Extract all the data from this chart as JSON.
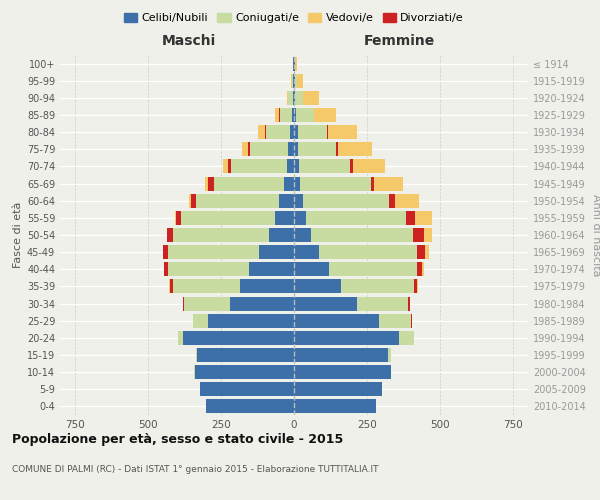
{
  "age_groups": [
    "0-4",
    "5-9",
    "10-14",
    "15-19",
    "20-24",
    "25-29",
    "30-34",
    "35-39",
    "40-44",
    "45-49",
    "50-54",
    "55-59",
    "60-64",
    "65-69",
    "70-74",
    "75-79",
    "80-84",
    "85-89",
    "90-94",
    "95-99",
    "100+"
  ],
  "birth_years": [
    "2010-2014",
    "2005-2009",
    "2000-2004",
    "1995-1999",
    "1990-1994",
    "1985-1989",
    "1980-1984",
    "1975-1979",
    "1970-1974",
    "1965-1969",
    "1960-1964",
    "1955-1959",
    "1950-1954",
    "1945-1949",
    "1940-1944",
    "1935-1939",
    "1930-1934",
    "1925-1929",
    "1920-1924",
    "1915-1919",
    "≤ 1914"
  ],
  "males": {
    "celibe": [
      300,
      320,
      340,
      330,
      380,
      295,
      220,
      185,
      155,
      120,
      85,
      65,
      50,
      35,
      25,
      20,
      15,
      8,
      5,
      3,
      2
    ],
    "coniugato": [
      1,
      1,
      2,
      5,
      15,
      50,
      155,
      230,
      275,
      310,
      330,
      320,
      285,
      240,
      190,
      130,
      80,
      40,
      15,
      5,
      2
    ],
    "vedovo": [
      0,
      0,
      0,
      0,
      0,
      0,
      0,
      1,
      1,
      1,
      2,
      3,
      5,
      10,
      15,
      20,
      25,
      15,
      5,
      2,
      0
    ],
    "divorziato": [
      0,
      0,
      0,
      0,
      1,
      2,
      5,
      10,
      15,
      18,
      18,
      18,
      18,
      18,
      12,
      8,
      3,
      2,
      0,
      0,
      0
    ]
  },
  "females": {
    "nubile": [
      280,
      300,
      330,
      320,
      360,
      290,
      215,
      160,
      120,
      85,
      58,
      42,
      30,
      22,
      18,
      15,
      12,
      8,
      5,
      3,
      2
    ],
    "coniugata": [
      0,
      1,
      3,
      10,
      50,
      110,
      175,
      250,
      300,
      335,
      350,
      340,
      295,
      240,
      175,
      130,
      100,
      60,
      25,
      8,
      2
    ],
    "vedova": [
      0,
      0,
      0,
      0,
      0,
      1,
      2,
      3,
      8,
      15,
      30,
      60,
      80,
      100,
      110,
      115,
      100,
      75,
      55,
      20,
      5
    ],
    "divorziata": [
      0,
      0,
      0,
      0,
      1,
      2,
      5,
      10,
      18,
      28,
      35,
      30,
      22,
      12,
      8,
      5,
      3,
      2,
      1,
      0,
      0
    ]
  },
  "colors": {
    "celibe": "#3d6fa8",
    "coniugato": "#c8dba0",
    "vedovo": "#f5c96a",
    "divorziato": "#cc2222"
  },
  "xlim": 800,
  "title": "Popolazione per età, sesso e stato civile - 2015",
  "subtitle": "COMUNE DI PALMI (RC) - Dati ISTAT 1° gennaio 2015 - Elaborazione TUTTITALIA.IT",
  "xlabel_left": "Maschi",
  "xlabel_right": "Femmine",
  "ylabel_left": "Fasce di età",
  "ylabel_right": "Anni di nascita",
  "legend_labels": [
    "Celibi/Nubili",
    "Coniugati/e",
    "Vedovi/e",
    "Divorziati/e"
  ],
  "bg_color": "#f0f0eb"
}
